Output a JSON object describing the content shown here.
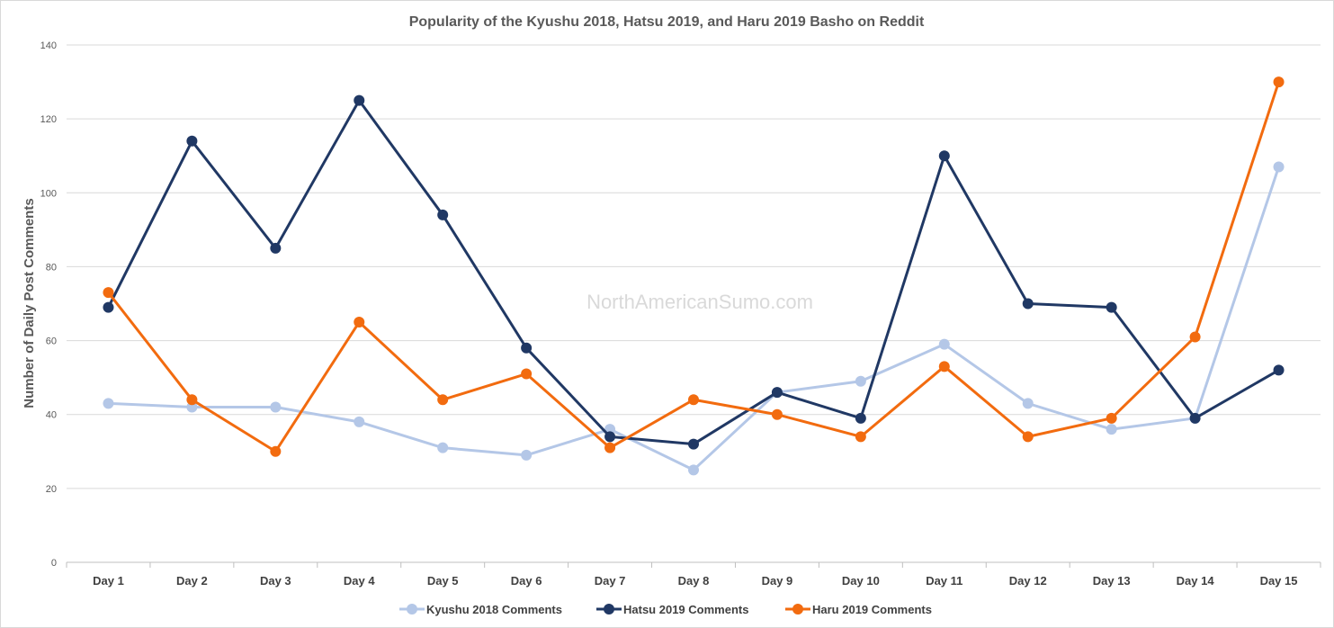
{
  "chart_data": {
    "type": "line",
    "title": "Popularity of the Kyushu 2018, Hatsu 2019, and Haru 2019 Basho on Reddit",
    "xlabel": "",
    "ylabel": "Number of Daily Post Comments",
    "ylim": [
      0,
      140
    ],
    "yticks": [
      0,
      20,
      40,
      60,
      80,
      100,
      120,
      140
    ],
    "grid": true,
    "legend_position": "bottom",
    "watermark": "NorthAmericanSumo.com",
    "categories": [
      "Day 1",
      "Day 2",
      "Day 3",
      "Day 4",
      "Day 5",
      "Day 6",
      "Day 7",
      "Day 8",
      "Day 9",
      "Day 10",
      "Day 11",
      "Day 12",
      "Day 13",
      "Day 14",
      "Day 15"
    ],
    "series": [
      {
        "name": "Kyushu 2018 Comments",
        "color": "#b4c7e7",
        "values": [
          43,
          42,
          42,
          38,
          31,
          29,
          36,
          25,
          46,
          49,
          59,
          43,
          36,
          39,
          107
        ]
      },
      {
        "name": "Hatsu 2019 Comments",
        "color": "#203864",
        "values": [
          69,
          114,
          85,
          125,
          94,
          58,
          34,
          32,
          46,
          39,
          110,
          70,
          69,
          39,
          52
        ]
      },
      {
        "name": "Haru 2019 Comments",
        "color": "#f26b0f",
        "values": [
          73,
          44,
          30,
          65,
          44,
          51,
          31,
          44,
          40,
          34,
          53,
          34,
          39,
          61,
          130
        ]
      }
    ]
  }
}
